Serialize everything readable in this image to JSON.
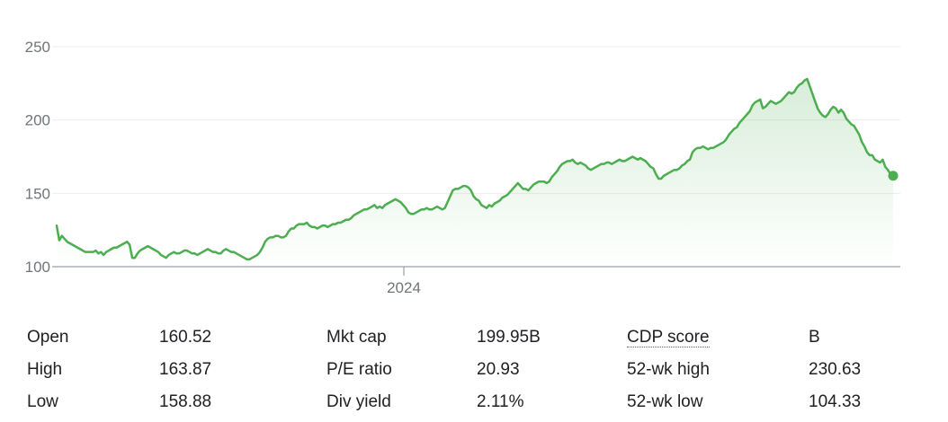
{
  "chart_data": {
    "type": "area",
    "y_ticks": [
      100,
      150,
      200,
      250
    ],
    "x_tick_label": "2024",
    "ylim": [
      100,
      260
    ],
    "grid": true,
    "line_color": "#4cae50",
    "fill_color": "#4cae50",
    "gridline_color": "#eeeeee",
    "axis_color": "#9aa0a6",
    "series": [
      {
        "values": [
          128,
          118,
          121,
          119,
          117,
          116,
          115,
          114,
          113,
          112,
          111,
          110,
          110,
          110,
          110,
          111,
          109,
          110,
          108,
          110,
          111,
          112,
          113,
          113,
          114,
          115,
          116,
          117,
          115,
          106,
          106,
          109,
          111,
          112,
          113,
          114,
          113,
          112,
          111,
          110,
          108,
          107,
          106,
          108,
          109,
          110,
          109,
          109,
          110,
          111,
          111,
          110,
          109,
          109,
          108,
          109,
          110,
          111,
          112,
          111,
          110,
          110,
          109,
          109,
          111,
          112,
          111,
          110,
          110,
          109,
          108,
          107,
          106,
          105,
          105,
          106,
          107,
          108,
          110,
          113,
          117,
          119,
          120,
          120,
          121,
          121,
          120,
          120,
          121,
          124,
          126,
          126,
          128,
          129,
          129,
          129,
          130,
          128,
          127,
          127,
          126,
          127,
          128,
          128,
          127,
          128,
          129,
          129,
          130,
          130,
          131,
          132,
          132,
          133,
          135,
          136,
          137,
          138,
          139,
          139,
          140,
          141,
          142,
          140,
          141,
          140,
          142,
          143,
          144,
          145,
          146,
          145,
          144,
          142,
          140,
          137,
          136,
          136,
          137,
          138,
          139,
          139,
          140,
          139,
          139,
          140,
          141,
          140,
          139,
          140,
          144,
          148,
          152,
          153,
          153,
          154,
          155,
          155,
          154,
          152,
          148,
          146,
          145,
          142,
          141,
          140,
          142,
          141,
          143,
          144,
          145,
          147,
          148,
          149,
          151,
          153,
          155,
          157,
          155,
          153,
          153,
          152,
          154,
          156,
          157,
          158,
          158,
          158,
          157,
          158,
          161,
          163,
          165,
          168,
          170,
          171,
          172,
          172,
          173,
          171,
          170,
          171,
          170,
          169,
          167,
          166,
          167,
          168,
          169,
          170,
          170,
          171,
          171,
          170,
          171,
          172,
          173,
          172,
          172,
          173,
          174,
          175,
          174,
          173,
          174,
          173,
          172,
          170,
          168,
          167,
          163,
          160,
          160,
          162,
          163,
          164,
          165,
          166,
          166,
          167,
          169,
          170,
          172,
          173,
          178,
          180,
          181,
          181,
          182,
          181,
          180,
          181,
          181,
          182,
          183,
          184,
          185,
          187,
          190,
          192,
          194,
          195,
          198,
          200,
          202,
          204,
          206,
          210,
          212,
          213,
          214,
          208,
          209,
          211,
          213,
          212,
          211,
          212,
          213,
          215,
          217,
          219,
          218,
          219,
          222,
          224,
          225,
          227,
          228,
          223,
          218,
          213,
          208,
          205,
          203,
          202,
          204,
          207,
          209,
          208,
          205,
          207,
          205,
          201,
          199,
          197,
          196,
          193,
          190,
          185,
          182,
          178,
          176,
          176,
          173,
          172,
          171,
          173,
          168,
          166,
          163,
          162
        ]
      }
    ]
  },
  "stats": {
    "rows": [
      [
        {
          "label": "Open",
          "value": "160.52"
        },
        {
          "label": "Mkt cap",
          "value": "199.95B"
        },
        {
          "label": "CDP score",
          "value": "B"
        }
      ],
      [
        {
          "label": "High",
          "value": "163.87"
        },
        {
          "label": "P/E ratio",
          "value": "20.93"
        },
        {
          "label": "52-wk high",
          "value": "230.63"
        }
      ],
      [
        {
          "label": "Low",
          "value": "158.88"
        },
        {
          "label": "Div yield",
          "value": "2.11%"
        },
        {
          "label": "52-wk low",
          "value": "104.33"
        }
      ]
    ]
  }
}
